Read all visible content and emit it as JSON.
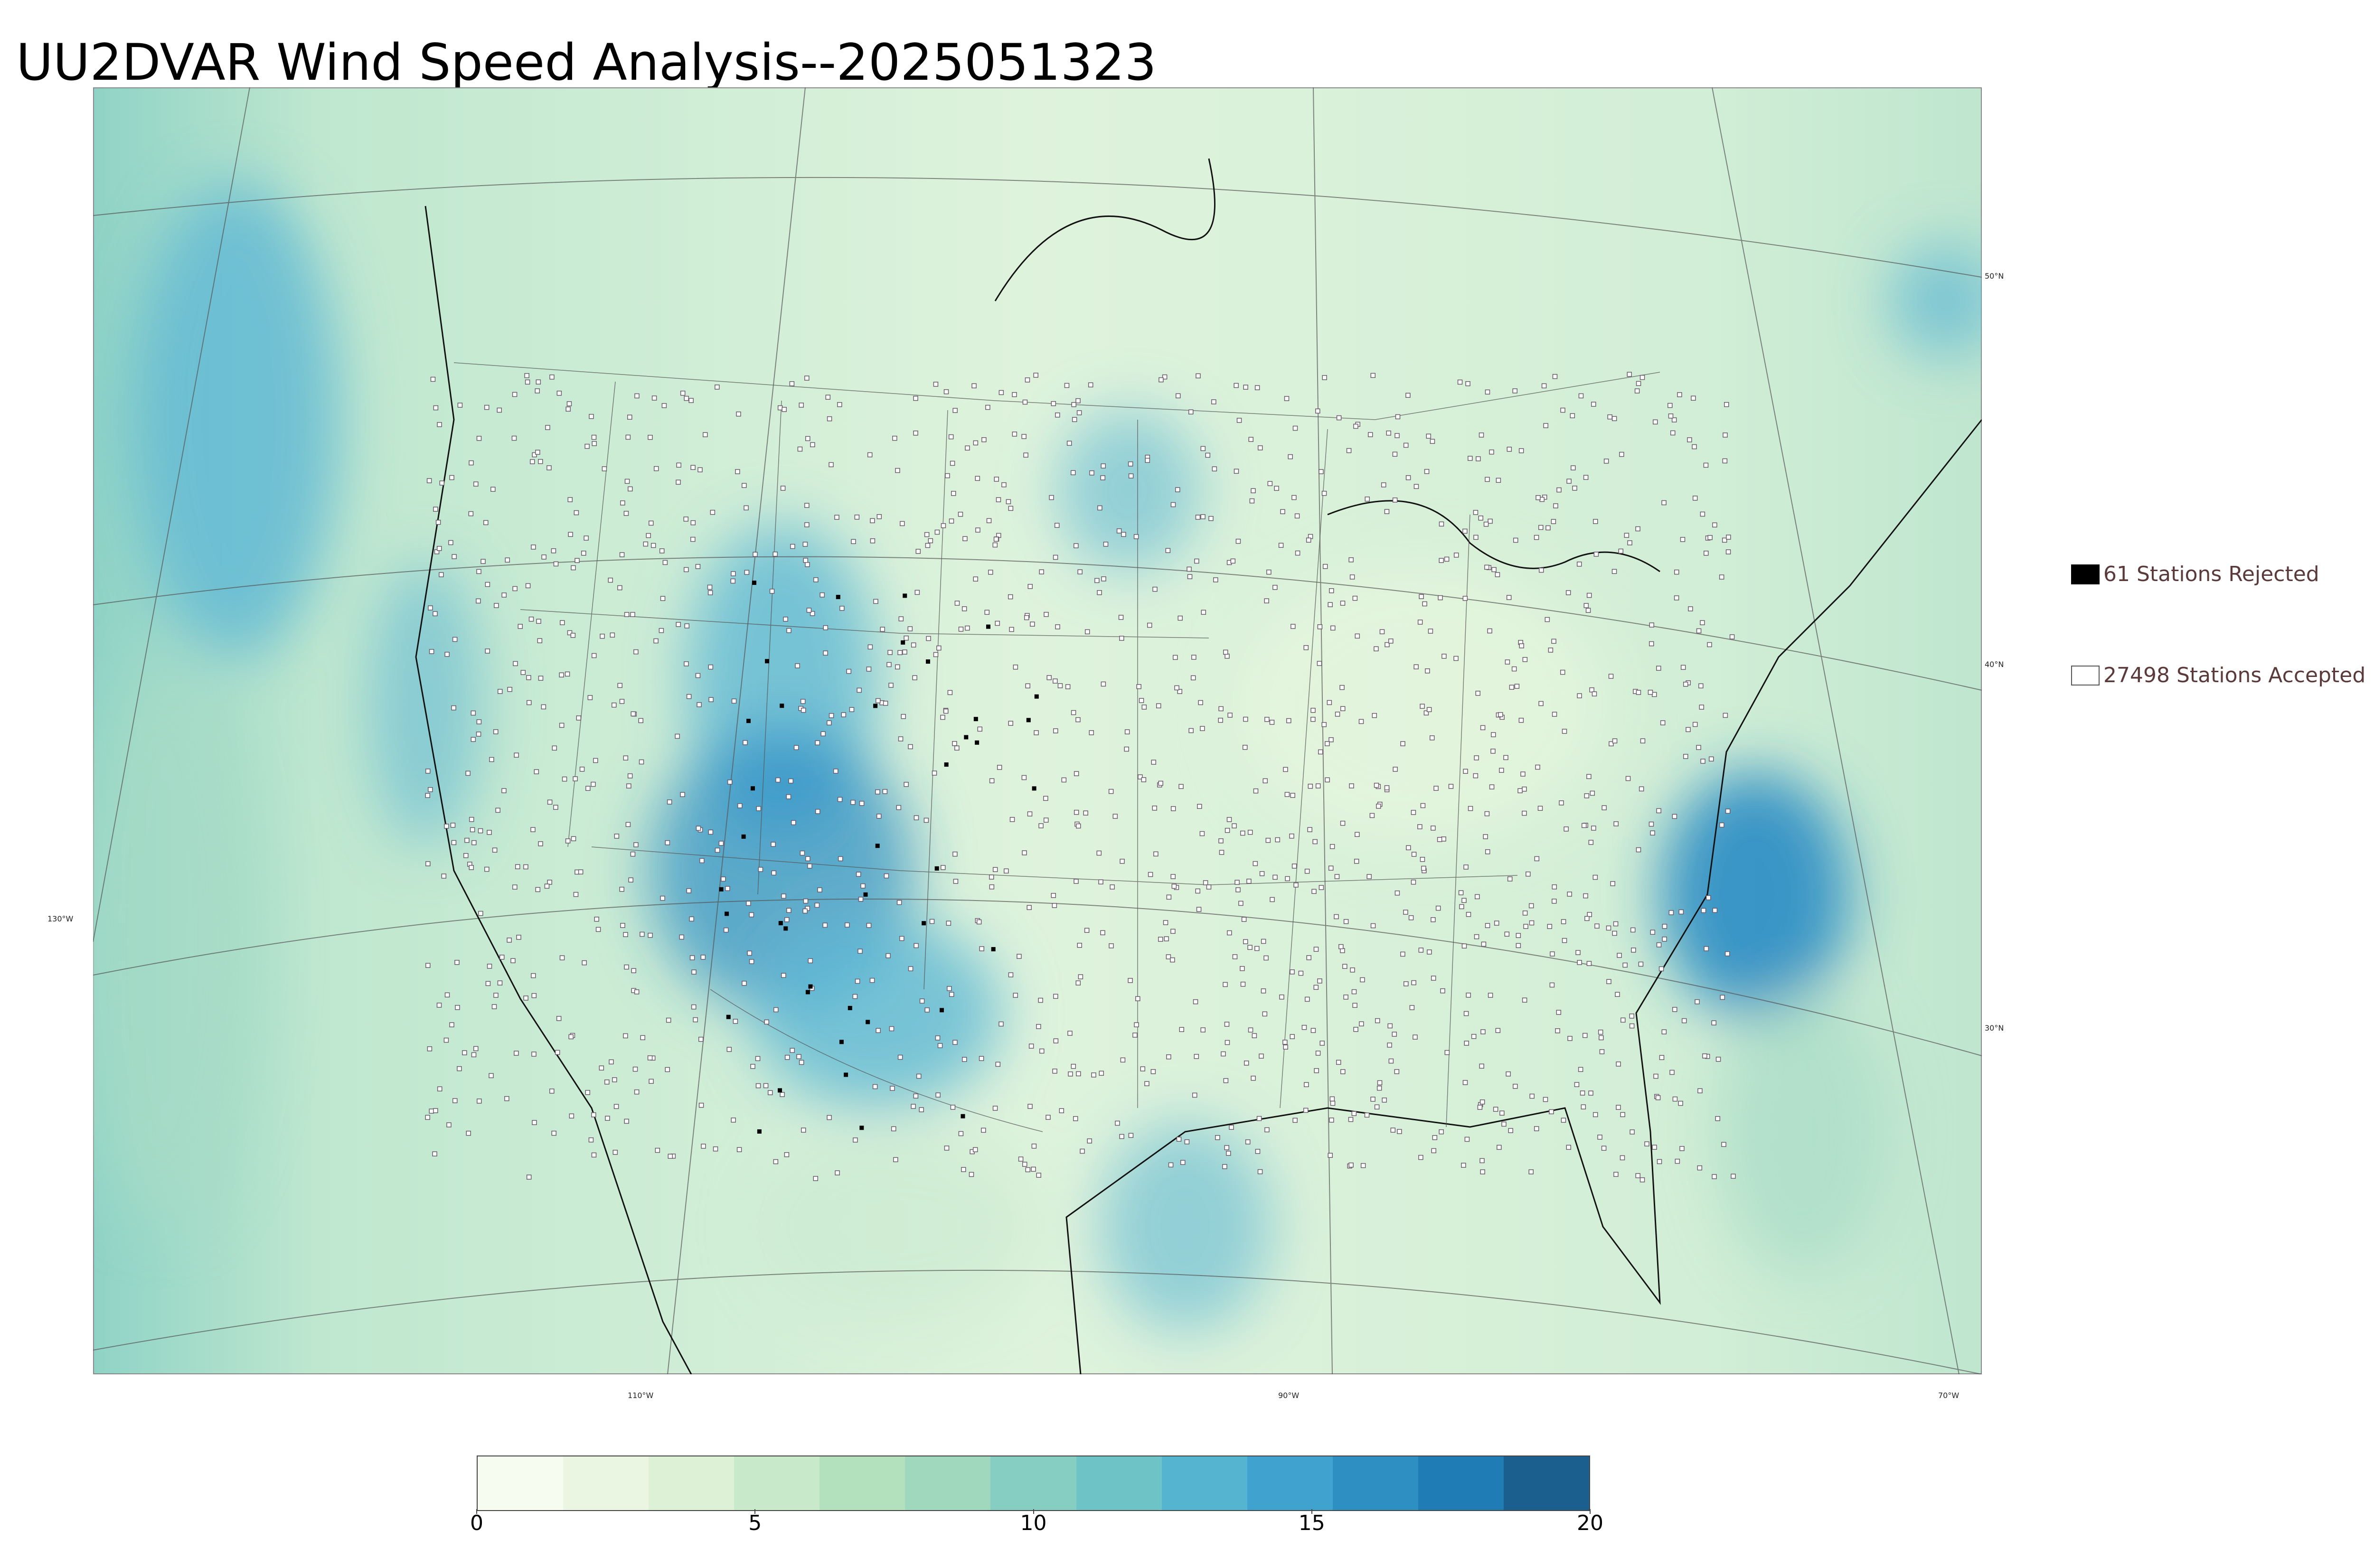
{
  "title": "UU2DVAR Wind Speed Analysis--2025051323",
  "legend": {
    "rejected_label": "61 Stations Rejected",
    "accepted_label": "27498 Stations Accepted"
  },
  "longitude_labels": [
    "130°W",
    "110°W",
    "90°W",
    "70°W"
  ],
  "latitude_labels": [
    "50°N",
    "40°N",
    "30°N"
  ],
  "colorbar": {
    "ticks": [
      "0",
      "5",
      "10",
      "15",
      "20"
    ],
    "min": 0,
    "max": 20,
    "colors": [
      "#f7fcf0",
      "#eaf6e2",
      "#dcf1d6",
      "#c8eaca",
      "#b3e1bd",
      "#9fd8bd",
      "#86cec2",
      "#6dc3c6",
      "#55b5d0",
      "#40a3cf",
      "#2e8fc3",
      "#207cb5",
      "#1a5f8e"
    ]
  },
  "map_colors": {
    "land_light": "#eaf6e0",
    "land_mid": "#c8ead0",
    "ocean": "#a6dcc6",
    "windy": "#5fb8d4",
    "very_windy": "#2a8cc4"
  }
}
